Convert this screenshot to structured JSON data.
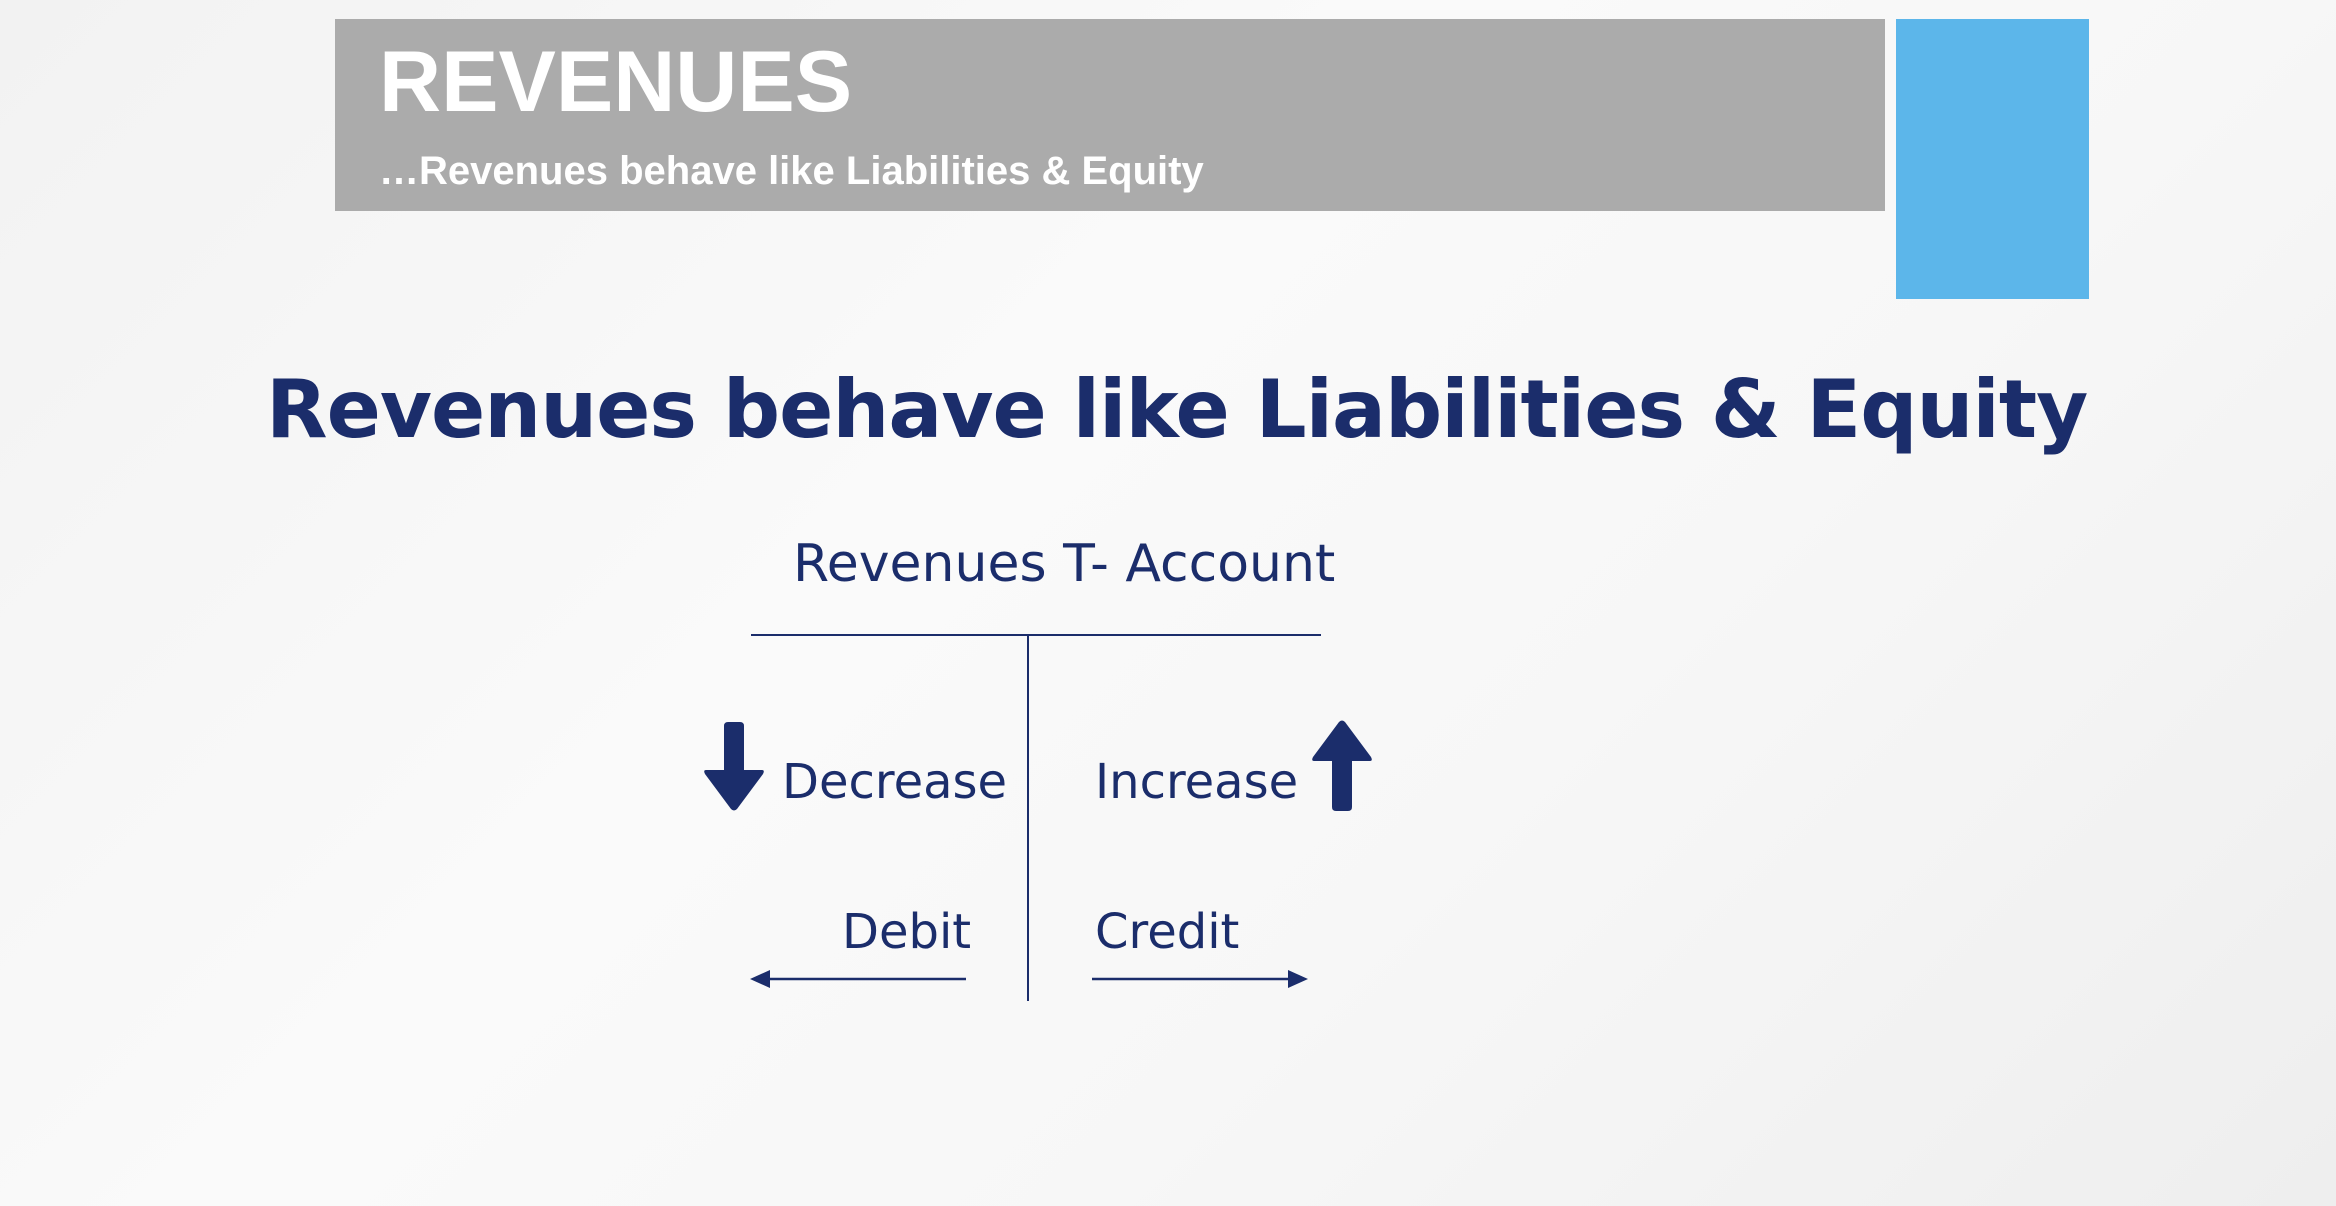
{
  "header": {
    "title": "REVENUES",
    "subtitle": "…Revenues behave like Liabilities & Equity"
  },
  "main": {
    "heading": "Revenues behave like Liabilities & Equity"
  },
  "t_account": {
    "title": "Revenues T- Account",
    "left": {
      "effect_label": "Decrease",
      "effect_icon": "arrow-down-icon",
      "side_label": "Debit",
      "side_icon": "arrow-left-icon"
    },
    "right": {
      "effect_label": "Increase",
      "effect_icon": "arrow-up-icon",
      "side_label": "Credit",
      "side_icon": "arrow-right-icon"
    }
  },
  "colors": {
    "header_bar": "#ababab",
    "accent": "#5cb6ea",
    "text_navy": "#1b2d6b"
  }
}
